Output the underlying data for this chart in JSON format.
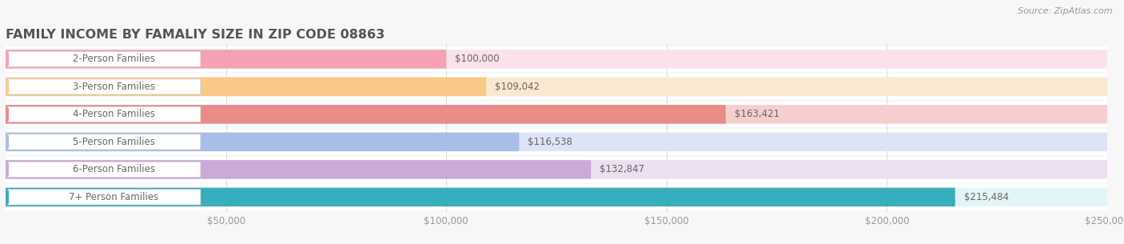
{
  "title": "FAMILY INCOME BY FAMALIY SIZE IN ZIP CODE 08863",
  "source": "Source: ZipAtlas.com",
  "categories": [
    "2-Person Families",
    "3-Person Families",
    "4-Person Families",
    "5-Person Families",
    "6-Person Families",
    "7+ Person Families"
  ],
  "values": [
    100000,
    109042,
    163421,
    116538,
    132847,
    215484
  ],
  "labels": [
    "$100,000",
    "$109,042",
    "$163,421",
    "$116,538",
    "$132,847",
    "$215,484"
  ],
  "bar_colors": [
    "#F5A0B5",
    "#F9C98A",
    "#E88C88",
    "#AABDE8",
    "#C9AAD8",
    "#38ADBC"
  ],
  "bar_bg_colors": [
    "#FAE2EA",
    "#FAE8D0",
    "#F5CECE",
    "#DCE4F5",
    "#EAE0F0",
    "#E2F5F7"
  ],
  "circle_colors": [
    "#F5A0B5",
    "#F9C98A",
    "#E88C88",
    "#AABDE8",
    "#C9AAD8",
    "#38ADBC"
  ],
  "xlim_max": 250000,
  "xticks": [
    50000,
    100000,
    150000,
    200000,
    250000
  ],
  "xticklabels": [
    "$50,000",
    "$100,000",
    "$150,000",
    "$200,000",
    "$250,000"
  ],
  "bg_color": "#f7f7f7",
  "row_bg_color": "#ffffff",
  "grid_color": "#dddddd",
  "title_color": "#555555",
  "label_color": "#666666",
  "tick_color": "#999999",
  "title_fontsize": 11.5,
  "bar_label_fontsize": 8.5,
  "cat_label_fontsize": 8.5,
  "tick_fontsize": 8.5
}
